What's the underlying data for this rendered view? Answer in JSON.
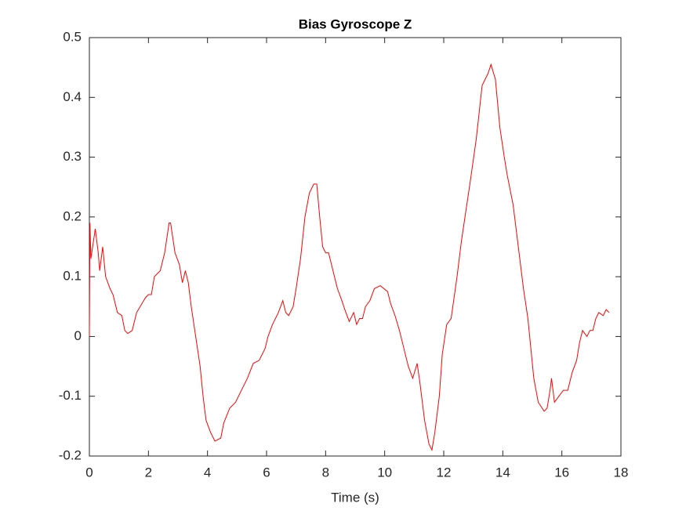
{
  "chart_data": {
    "type": "line",
    "title": "Bias Gyroscope Z",
    "x_label": "Time (s)",
    "xlim": [
      0,
      18
    ],
    "xticks": [
      0,
      2,
      4,
      6,
      8,
      10,
      12,
      14,
      16,
      18
    ],
    "ylim": [
      -0.2,
      0.5
    ],
    "yticks": [
      -0.2,
      -0.1,
      0,
      0.1,
      0.2,
      0.3,
      0.4,
      0.5
    ],
    "grid": false,
    "series": [
      {
        "name": "Bias Gyroscope Z",
        "color": "#ff0000",
        "x": [
          0,
          0.02,
          0.05,
          0.2,
          0.3,
          0.35,
          0.45,
          0.55,
          0.7,
          0.8,
          0.95,
          1.1,
          1.2,
          1.3,
          1.45,
          1.6,
          1.9,
          2.0,
          2.1,
          2.2,
          2.4,
          2.55,
          2.7,
          2.75,
          2.9,
          3.05,
          3.15,
          3.25,
          3.35,
          3.45,
          3.6,
          3.75,
          3.85,
          3.95,
          4.1,
          4.25,
          4.45,
          4.55,
          4.75,
          4.95,
          5.15,
          5.35,
          5.55,
          5.75,
          5.95,
          6.05,
          6.2,
          6.4,
          6.55,
          6.65,
          6.75,
          6.9,
          7.0,
          7.15,
          7.3,
          7.45,
          7.6,
          7.7,
          7.8,
          7.9,
          8.0,
          8.1,
          8.25,
          8.4,
          8.55,
          8.65,
          8.8,
          8.95,
          9.05,
          9.15,
          9.25,
          9.35,
          9.5,
          9.65,
          9.85,
          10.1,
          10.2,
          10.35,
          10.5,
          10.65,
          10.8,
          10.95,
          11.1,
          11.2,
          11.35,
          11.5,
          11.6,
          11.7,
          11.85,
          11.95,
          12.1,
          12.25,
          12.45,
          12.6,
          12.75,
          12.9,
          13.1,
          13.3,
          13.5,
          13.6,
          13.75,
          13.9,
          14.05,
          14.15,
          14.35,
          14.5,
          14.7,
          14.85,
          14.95,
          15.05,
          15.2,
          15.4,
          15.5,
          15.6,
          15.65,
          15.75,
          15.9,
          16.05,
          16.2,
          16.35,
          16.5,
          16.6,
          16.7,
          16.85,
          16.95,
          17.05,
          17.15,
          17.25,
          17.4,
          17.5,
          17.6
        ],
        "values": [
          0,
          0.19,
          0.13,
          0.18,
          0.14,
          0.11,
          0.15,
          0.1,
          0.08,
          0.07,
          0.04,
          0.035,
          0.01,
          0.005,
          0.01,
          0.04,
          0.065,
          0.07,
          0.07,
          0.1,
          0.11,
          0.14,
          0.19,
          0.19,
          0.14,
          0.12,
          0.09,
          0.11,
          0.09,
          0.05,
          0.0,
          -0.05,
          -0.1,
          -0.14,
          -0.16,
          -0.175,
          -0.17,
          -0.145,
          -0.12,
          -0.11,
          -0.09,
          -0.07,
          -0.045,
          -0.04,
          -0.02,
          0.0,
          0.02,
          0.04,
          0.06,
          0.04,
          0.035,
          0.05,
          0.08,
          0.13,
          0.2,
          0.24,
          0.255,
          0.255,
          0.2,
          0.15,
          0.14,
          0.14,
          0.11,
          0.08,
          0.06,
          0.045,
          0.025,
          0.04,
          0.02,
          0.03,
          0.03,
          0.05,
          0.06,
          0.08,
          0.085,
          0.075,
          0.055,
          0.035,
          0.01,
          -0.02,
          -0.05,
          -0.07,
          -0.045,
          -0.08,
          -0.14,
          -0.18,
          -0.19,
          -0.16,
          -0.1,
          -0.03,
          0.02,
          0.03,
          0.1,
          0.16,
          0.21,
          0.26,
          0.33,
          0.42,
          0.44,
          0.455,
          0.43,
          0.35,
          0.3,
          0.27,
          0.22,
          0.16,
          0.08,
          0.03,
          -0.02,
          -0.07,
          -0.11,
          -0.125,
          -0.12,
          -0.09,
          -0.07,
          -0.11,
          -0.1,
          -0.09,
          -0.09,
          -0.06,
          -0.04,
          -0.01,
          0.01,
          0.0,
          0.01,
          0.01,
          0.03,
          0.04,
          0.035,
          0.045,
          0.04
        ]
      }
    ]
  }
}
